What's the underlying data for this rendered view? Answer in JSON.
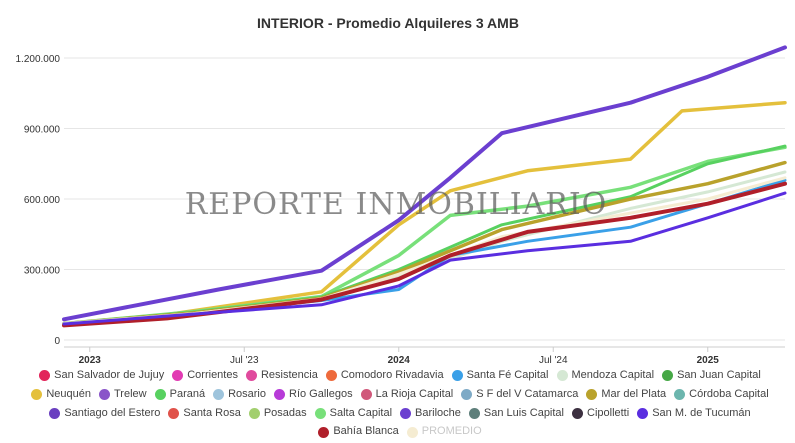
{
  "chart_data": {
    "type": "line",
    "title": "INTERIOR - Promedio Alquileres 3 AMB",
    "watermark": "REPORTE INMOBILIARIO",
    "xlabel": "",
    "ylabel": "",
    "x": [
      "2022-12",
      "2023-01",
      "2023-02",
      "2023-03",
      "2023-04",
      "2023-05",
      "2023-06",
      "2023-07",
      "2023-08",
      "2023-09",
      "2023-10",
      "2023-11",
      "2023-12",
      "2024-01",
      "2024-02",
      "2024-03",
      "2024-04",
      "2024-05",
      "2024-06",
      "2024-07",
      "2024-08",
      "2024-09",
      "2024-10",
      "2024-11",
      "2024-12",
      "2025-01",
      "2025-02",
      "2025-03",
      "2025-04"
    ],
    "x_ticks": [
      {
        "label": "2023",
        "x": "2023-01",
        "major": true
      },
      {
        "label": "Jul '23",
        "x": "2023-07",
        "major": false
      },
      {
        "label": "2024",
        "x": "2024-01",
        "major": true
      },
      {
        "label": "Jul '24",
        "x": "2024-07",
        "major": false
      },
      {
        "label": "2025",
        "x": "2025-01",
        "major": true
      }
    ],
    "y_ticks": [
      {
        "label": "0",
        "value": 0
      },
      {
        "label": "300.000",
        "value": 300000
      },
      {
        "label": "600.000",
        "value": 600000
      },
      {
        "label": "900.000",
        "value": 900000
      },
      {
        "label": "1.200.000",
        "value": 1200000
      }
    ],
    "ylim": [
      0,
      1200000
    ],
    "grid": "horizontal",
    "legend_position": "bottom",
    "legend": [
      {
        "name": "San Salvador de Jujuy",
        "color": "#e2245a"
      },
      {
        "name": "Corrientes",
        "color": "#e23bb3"
      },
      {
        "name": "Resistencia",
        "color": "#e04a9d"
      },
      {
        "name": "Comodoro Rivadavia",
        "color": "#ee6a3c"
      },
      {
        "name": "Santa Fé Capital",
        "color": "#3aa0e8"
      },
      {
        "name": "Mendoza Capital",
        "color": "#d5e8d4"
      },
      {
        "name": "San Juan Capital",
        "color": "#46a846"
      },
      {
        "name": "Neuquén",
        "color": "#e4c03c"
      },
      {
        "name": "Trelew",
        "color": "#8a55c9"
      },
      {
        "name": "Paraná",
        "color": "#58d160"
      },
      {
        "name": "Rosario",
        "color": "#9ec4dc"
      },
      {
        "name": "Río Gallegos",
        "color": "#b73bd8"
      },
      {
        "name": "La Rioja Capital",
        "color": "#d0587a"
      },
      {
        "name": "S F del V Catamarca",
        "color": "#7eaac6"
      },
      {
        "name": "Mar del Plata",
        "color": "#b9a22c"
      },
      {
        "name": "Córdoba Capital",
        "color": "#6cb6ae"
      },
      {
        "name": "Santiago del Estero",
        "color": "#6a3fc0"
      },
      {
        "name": "Santa Rosa",
        "color": "#e0524a"
      },
      {
        "name": "Posadas",
        "color": "#a2cf6e"
      },
      {
        "name": "Salta Capital",
        "color": "#78e07a"
      },
      {
        "name": "Bariloche",
        "color": "#6b3fd0"
      },
      {
        "name": "San Luis Capital",
        "color": "#5e7f7b"
      },
      {
        "name": "Cipolletti",
        "color": "#3c3040"
      },
      {
        "name": "San M. de Tucumán",
        "color": "#5a2ee0"
      },
      {
        "name": "Bahía Blanca",
        "color": "#b01f2a"
      },
      {
        "name": "PROMEDIO",
        "color": "#f5ecd2"
      }
    ],
    "series": [
      {
        "name": "Bariloche",
        "color": "#6b3fd0",
        "width": 4,
        "points": [
          [
            "2022-12",
            88000
          ],
          [
            "2023-06",
            215000
          ],
          [
            "2023-10",
            295000
          ],
          [
            "2024-01",
            510000
          ],
          [
            "2024-03",
            690000
          ],
          [
            "2024-05",
            880000
          ],
          [
            "2024-10",
            1010000
          ],
          [
            "2025-01",
            1120000
          ],
          [
            "2025-04",
            1245000
          ]
        ]
      },
      {
        "name": "Neuquén",
        "color": "#e4c03c",
        "width": 3.5,
        "points": [
          [
            "2022-12",
            70000
          ],
          [
            "2023-04",
            108000
          ],
          [
            "2023-10",
            205000
          ],
          [
            "2024-01",
            490000
          ],
          [
            "2024-03",
            635000
          ],
          [
            "2024-06",
            720000
          ],
          [
            "2024-10",
            770000
          ],
          [
            "2024-12",
            975000
          ],
          [
            "2025-04",
            1010000
          ]
        ]
      },
      {
        "name": "Salta Capital",
        "color": "#78e07a",
        "width": 3.5,
        "points": [
          [
            "2022-12",
            70000
          ],
          [
            "2023-05",
            120000
          ],
          [
            "2023-10",
            185000
          ],
          [
            "2024-01",
            360000
          ],
          [
            "2024-03",
            530000
          ],
          [
            "2024-06",
            570000
          ],
          [
            "2024-10",
            650000
          ],
          [
            "2025-01",
            760000
          ],
          [
            "2025-04",
            820000
          ]
        ]
      },
      {
        "name": "Paraná",
        "color": "#58d160",
        "width": 3,
        "points": [
          [
            "2022-12",
            70000
          ],
          [
            "2023-05",
            118000
          ],
          [
            "2023-10",
            182000
          ],
          [
            "2024-01",
            300000
          ],
          [
            "2024-05",
            490000
          ],
          [
            "2024-10",
            610000
          ],
          [
            "2025-01",
            750000
          ],
          [
            "2025-04",
            825000
          ]
        ]
      },
      {
        "name": "Mar del Plata",
        "color": "#b9a22c",
        "width": 3.5,
        "points": [
          [
            "2022-12",
            70000
          ],
          [
            "2023-05",
            115000
          ],
          [
            "2023-10",
            178000
          ],
          [
            "2024-01",
            290000
          ],
          [
            "2024-05",
            470000
          ],
          [
            "2024-10",
            600000
          ],
          [
            "2025-01",
            665000
          ],
          [
            "2025-04",
            755000
          ]
        ]
      },
      {
        "name": "Mendoza Capital",
        "color": "#d5e8d4",
        "width": 3,
        "points": [
          [
            "2022-12",
            70000
          ],
          [
            "2023-05",
            112000
          ],
          [
            "2023-10",
            172000
          ],
          [
            "2024-01",
            270000
          ],
          [
            "2024-05",
            420000
          ],
          [
            "2024-10",
            560000
          ],
          [
            "2025-01",
            630000
          ],
          [
            "2025-04",
            715000
          ]
        ]
      },
      {
        "name": "Santa Fé Capital",
        "color": "#3aa0e8",
        "width": 3,
        "points": [
          [
            "2022-12",
            70000
          ],
          [
            "2023-05",
            110000
          ],
          [
            "2023-10",
            168000
          ],
          [
            "2024-01",
            215000
          ],
          [
            "2024-03",
            360000
          ],
          [
            "2024-06",
            420000
          ],
          [
            "2024-10",
            480000
          ],
          [
            "2025-01",
            580000
          ],
          [
            "2025-04",
            680000
          ]
        ]
      },
      {
        "name": "PROMEDIO",
        "color": "#f5ecd2",
        "width": 3,
        "points": [
          [
            "2022-12",
            70000
          ],
          [
            "2023-05",
            112000
          ],
          [
            "2023-10",
            175000
          ],
          [
            "2024-01",
            280000
          ],
          [
            "2024-05",
            440000
          ],
          [
            "2024-10",
            540000
          ],
          [
            "2025-01",
            600000
          ],
          [
            "2025-04",
            690000
          ]
        ]
      },
      {
        "name": "Bahía Blanca",
        "color": "#b01f2a",
        "width": 4,
        "points": [
          [
            "2022-12",
            62000
          ],
          [
            "2023-04",
            92000
          ],
          [
            "2023-10",
            172000
          ],
          [
            "2024-01",
            260000
          ],
          [
            "2024-03",
            360000
          ],
          [
            "2024-06",
            460000
          ],
          [
            "2024-10",
            520000
          ],
          [
            "2025-01",
            580000
          ],
          [
            "2025-04",
            665000
          ]
        ]
      },
      {
        "name": "San M. de Tucumán",
        "color": "#5a2ee0",
        "width": 3,
        "points": [
          [
            "2022-12",
            68000
          ],
          [
            "2023-05",
            110000
          ],
          [
            "2023-10",
            150000
          ],
          [
            "2024-01",
            230000
          ],
          [
            "2024-03",
            340000
          ],
          [
            "2024-06",
            380000
          ],
          [
            "2024-10",
            420000
          ],
          [
            "2025-01",
            520000
          ],
          [
            "2025-04",
            625000
          ]
        ]
      }
    ]
  }
}
